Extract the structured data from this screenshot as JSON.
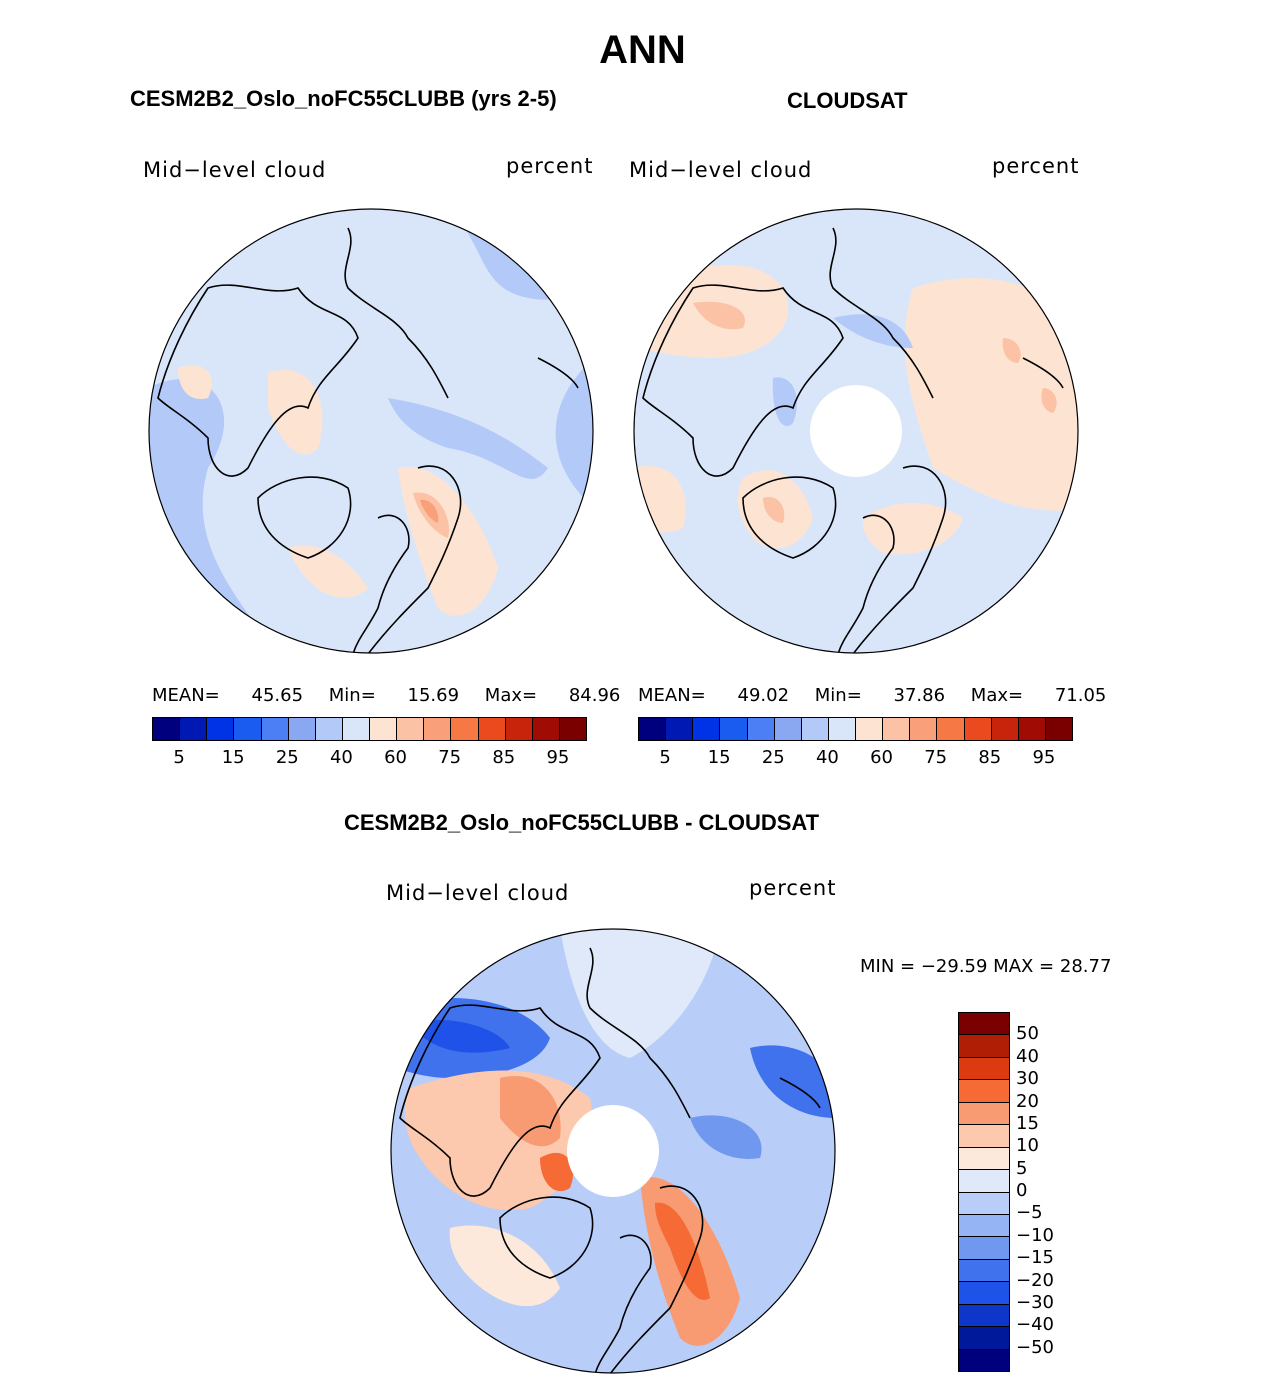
{
  "figure": {
    "title": "ANN",
    "panels": [
      {
        "title": "CESM2B2_Oslo_noFC55CLUBB (yrs 2-5)",
        "left_label": "Mid−level cloud",
        "right_label": "percent",
        "mean_label": "MEAN=",
        "mean": "45.65",
        "min_label": "Min=",
        "min": "15.69",
        "max_label": "Max=",
        "max": "84.96"
      },
      {
        "title": "CLOUDSAT",
        "left_label": "Mid−level cloud",
        "right_label": "percent",
        "mean_label": "MEAN=",
        "mean": "49.02",
        "min_label": "Min=",
        "min": "37.86",
        "max_label": "Max=",
        "max": "71.05"
      }
    ],
    "diff": {
      "title": "CESM2B2_Oslo_noFC55CLUBB - CLOUDSAT",
      "left_label": "Mid−level cloud",
      "right_label": "percent",
      "minmax": "MIN = −29.59 MAX =   28.77"
    }
  },
  "chart_data": {
    "type": "heatmap",
    "projection": "north polar stereographic",
    "colorbar_abs": {
      "colors": [
        "#00007f",
        "#0019b2",
        "#0033e5",
        "#1a5cf0",
        "#4c7ff5",
        "#8aa8f2",
        "#b3c9f7",
        "#d9e6fa",
        "#fde4d2",
        "#fbc2a6",
        "#f9a07a",
        "#f57845",
        "#eb4a1f",
        "#c8240c",
        "#a00c04",
        "#7a0000"
      ],
      "tick_labels": [
        "5",
        "15",
        "25",
        "40",
        "60",
        "75",
        "85",
        "95"
      ]
    },
    "colorbar_diff": {
      "colors": [
        "#7a0000",
        "#b01e06",
        "#dc3a10",
        "#f66a35",
        "#f89b72",
        "#fcc8ae",
        "#fde9dc",
        "#dfe9f9",
        "#b8cef8",
        "#94b4f3",
        "#6f98ee",
        "#3f72ec",
        "#1f52e8",
        "#0e36c8",
        "#00199a"
      ],
      "tick_labels": [
        "50",
        "40",
        "30",
        "20",
        "15",
        "10",
        "5",
        "0",
        "−5",
        "−10",
        "−15",
        "−20",
        "−30",
        "−40",
        "−50"
      ]
    }
  }
}
